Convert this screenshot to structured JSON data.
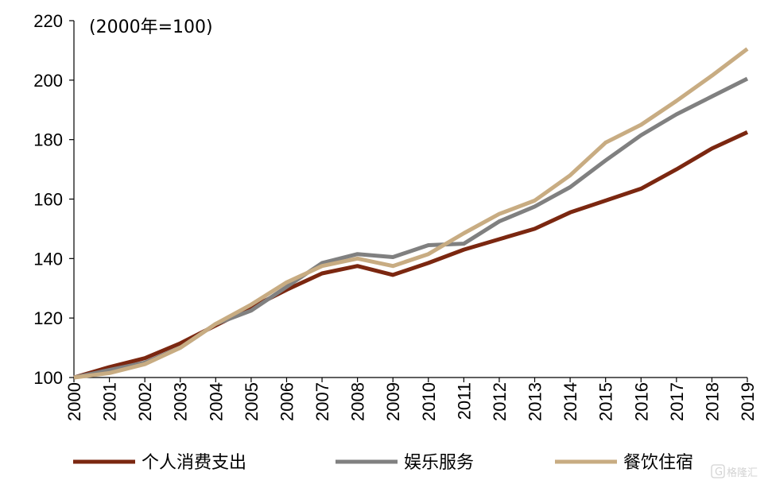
{
  "chart_data": {
    "type": "line",
    "title": "",
    "annotation": "(2000年=100)",
    "xlabel": "",
    "ylabel": "",
    "ylim": [
      100,
      220
    ],
    "yticks": [
      100,
      120,
      140,
      160,
      180,
      200,
      220
    ],
    "categories": [
      "2000",
      "2001",
      "2002",
      "2003",
      "2004",
      "2005",
      "2006",
      "2007",
      "2008",
      "2009",
      "2010",
      "2011",
      "2012",
      "2013",
      "2014",
      "2015",
      "2016",
      "2017",
      "2018",
      "2019"
    ],
    "series": [
      {
        "name": "个人消费支出",
        "color": "#7b2710",
        "values": [
          100,
          103.5,
          106.5,
          111.5,
          117.5,
          123.5,
          129.5,
          135,
          137.5,
          134.5,
          138.5,
          143,
          146.5,
          150,
          155.5,
          159.5,
          163.5,
          170,
          177,
          182.5
        ]
      },
      {
        "name": "娱乐服务",
        "color": "#808080",
        "values": [
          100,
          102.5,
          105,
          110,
          118,
          122.5,
          130.5,
          138.5,
          141.5,
          140.5,
          144.5,
          145,
          152.5,
          157.5,
          164,
          173,
          181.5,
          188.5,
          194.5,
          200.5
        ]
      },
      {
        "name": "餐饮住宿",
        "color": "#c8ac82",
        "values": [
          100,
          101.5,
          104.5,
          110,
          118,
          124.5,
          132,
          137.5,
          140,
          137.5,
          141.5,
          148.5,
          155,
          159.5,
          168,
          179,
          185,
          193,
          201.5,
          210.5
        ]
      }
    ],
    "legend_position": "bottom",
    "grid": false
  },
  "watermark": {
    "text": "格隆汇",
    "icon": "logo-g-icon"
  }
}
